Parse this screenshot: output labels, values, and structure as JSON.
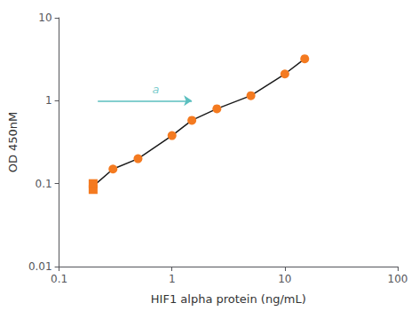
{
  "chart_data": {
    "type": "line",
    "xlabel": "HIF1 alpha protein (ng/mL)",
    "ylabel": "OD 450nM",
    "log": true,
    "grid": false,
    "xlim": [
      0.1,
      100
    ],
    "ylim": [
      0.01,
      10
    ],
    "xticks": [
      0.1,
      1,
      10,
      100
    ],
    "yticks": [
      0.01,
      0.1,
      1,
      10
    ],
    "series": [
      {
        "type": "line",
        "color": "#1a1a1a",
        "x": [
          0.2,
          0.3,
          0.5,
          1.0,
          1.5,
          2.5,
          5.0,
          10.0,
          15.0
        ],
        "values": [
          0.093,
          0.15,
          0.2,
          0.38,
          0.58,
          0.8,
          1.15,
          2.1,
          3.2
        ]
      },
      {
        "type": "scatter",
        "marker": "square",
        "color": "#F47A20",
        "x": [
          0.2,
          0.2
        ],
        "values": [
          0.085,
          0.1
        ]
      },
      {
        "type": "scatter",
        "marker": "circle",
        "color": "#F47A20",
        "x": [
          0.3,
          0.5,
          1.0,
          1.5,
          2.5,
          5.0,
          10.0,
          15.0
        ],
        "values": [
          0.15,
          0.2,
          0.38,
          0.58,
          0.8,
          1.15,
          2.1,
          3.2
        ]
      }
    ],
    "annotations": [
      {
        "text": "a",
        "x": 0.72,
        "y": 1.18,
        "color": "#5BBFBF",
        "arrow": {
          "from": [
            0.22,
            1.0
          ],
          "to": [
            1.5,
            1.0
          ]
        }
      }
    ]
  }
}
